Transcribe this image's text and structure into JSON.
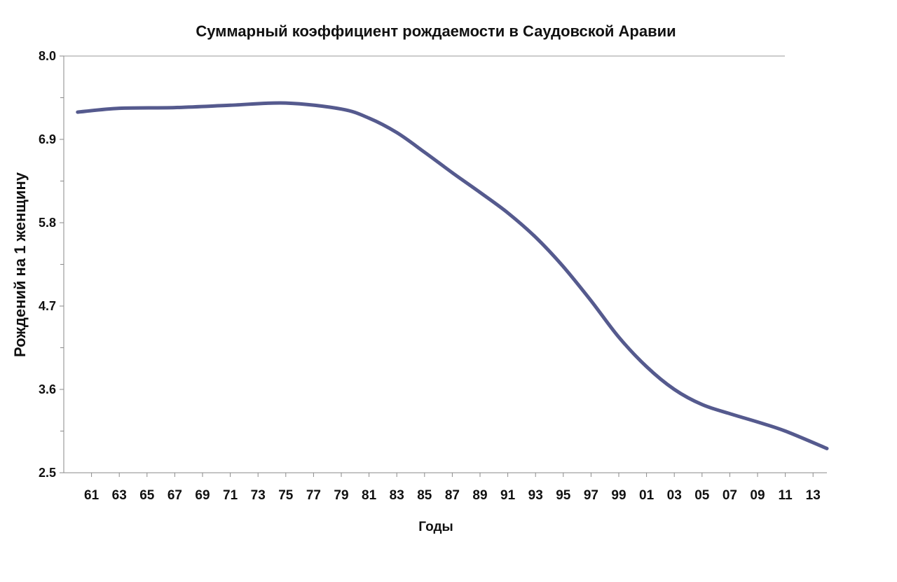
{
  "chart_data": {
    "type": "line",
    "title": "Суммарный коэффициент рождаемости в Саудовской Аравии",
    "xlabel": "Годы",
    "ylabel": "Рождений на 1 женщину",
    "ylim": [
      2.5,
      8.0
    ],
    "xlim": [
      1959,
      2014
    ],
    "yticks": [
      "8.0",
      "6.9",
      "5.8",
      "4.7",
      "3.6",
      "2.5"
    ],
    "xticks": [
      {
        "year": 1961,
        "label": "61"
      },
      {
        "year": 1963,
        "label": "63"
      },
      {
        "year": 1965,
        "label": "65"
      },
      {
        "year": 1967,
        "label": "67"
      },
      {
        "year": 1969,
        "label": "69"
      },
      {
        "year": 1971,
        "label": "71"
      },
      {
        "year": 1973,
        "label": "73"
      },
      {
        "year": 1975,
        "label": "75"
      },
      {
        "year": 1977,
        "label": "77"
      },
      {
        "year": 1979,
        "label": "79"
      },
      {
        "year": 1981,
        "label": "81"
      },
      {
        "year": 1983,
        "label": "83"
      },
      {
        "year": 1985,
        "label": "85"
      },
      {
        "year": 1987,
        "label": "87"
      },
      {
        "year": 1989,
        "label": "89"
      },
      {
        "year": 1991,
        "label": "91"
      },
      {
        "year": 1993,
        "label": "93"
      },
      {
        "year": 1995,
        "label": "95"
      },
      {
        "year": 1997,
        "label": "97"
      },
      {
        "year": 1999,
        "label": "99"
      },
      {
        "year": 2001,
        "label": "01"
      },
      {
        "year": 2003,
        "label": "03"
      },
      {
        "year": 2005,
        "label": "05"
      },
      {
        "year": 2007,
        "label": "07"
      },
      {
        "year": 2009,
        "label": "09"
      },
      {
        "year": 2011,
        "label": "11"
      },
      {
        "year": 2013,
        "label": "13"
      }
    ],
    "grid": false,
    "series": [
      {
        "color": "#555a8e",
        "x": [
          1960,
          1963,
          1967,
          1971,
          1975,
          1979,
          1981,
          1983,
          1985,
          1987,
          1989,
          1991,
          1993,
          1995,
          1997,
          1999,
          2001,
          2003,
          2005,
          2007,
          2009,
          2011,
          2014
        ],
        "y": [
          7.26,
          7.31,
          7.32,
          7.35,
          7.38,
          7.3,
          7.18,
          6.99,
          6.73,
          6.46,
          6.2,
          5.93,
          5.61,
          5.22,
          4.77,
          4.29,
          3.9,
          3.6,
          3.4,
          3.28,
          3.17,
          3.05,
          2.82
        ]
      }
    ]
  }
}
